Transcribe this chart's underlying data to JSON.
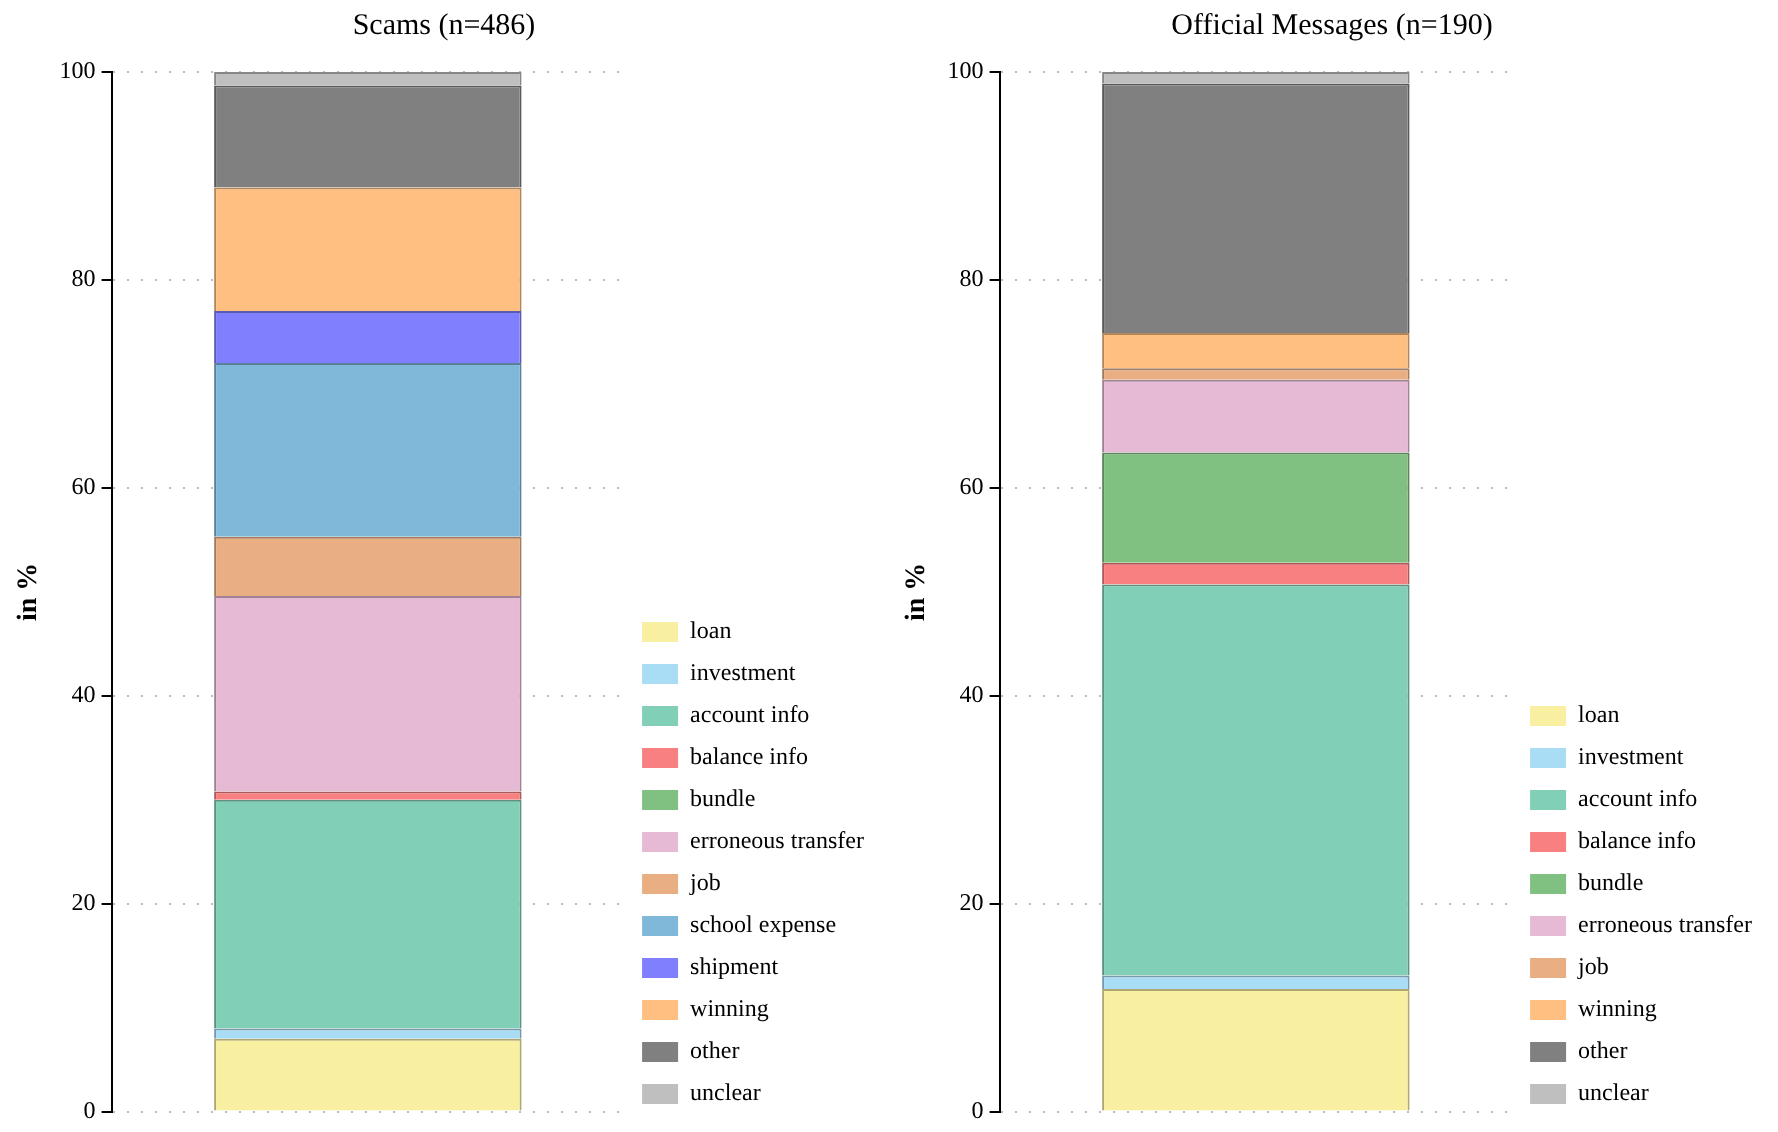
{
  "chart_data": [
    {
      "type": "bar",
      "title": "Scams (n=486)",
      "ylabel": "in %",
      "categories": [
        null
      ],
      "stacked": true,
      "ylim": [
        0,
        100
      ],
      "yticks": [
        0,
        20,
        40,
        60,
        80,
        100
      ],
      "grid": "y",
      "legend": "bottom right",
      "tick_labels": "y",
      "series": [
        {
          "name": "loan",
          "color": "#f8f0a0",
          "values": [
            7
          ]
        },
        {
          "name": "investment",
          "color": "#a9dcf5",
          "values": [
            1
          ]
        },
        {
          "name": "account info",
          "color": "#80cfb6",
          "values": [
            22
          ]
        },
        {
          "name": "balance info",
          "color": "#f98080",
          "values": [
            0.8
          ]
        },
        {
          "name": "bundle",
          "color": "#80c080",
          "values": [
            0
          ]
        },
        {
          "name": "erroneous transfer",
          "color": "#e6bad4",
          "values": [
            18.8
          ]
        },
        {
          "name": "job",
          "color": "#e9af83",
          "values": [
            5.7
          ]
        },
        {
          "name": "school expense",
          "color": "#80b8da",
          "values": [
            16.7
          ]
        },
        {
          "name": "shipment",
          "color": "#8080ff",
          "values": [
            5
          ]
        },
        {
          "name": "winning",
          "color": "#ffbf80",
          "values": [
            11.9
          ]
        },
        {
          "name": "other",
          "color": "#808080",
          "values": [
            9.8
          ]
        },
        {
          "name": "unclear",
          "color": "#bfbfbf",
          "values": [
            1.3
          ]
        }
      ]
    },
    {
      "type": "bar",
      "title": "Official Messages (n=190)",
      "ylabel": "in %",
      "categories": [
        null
      ],
      "stacked": true,
      "ylim": [
        0,
        100
      ],
      "yticks": [
        0,
        20,
        40,
        60,
        80,
        100
      ],
      "grid": "y",
      "legend": "bottom right",
      "tick_labels": "y",
      "series": [
        {
          "name": "loan",
          "color": "#f8f0a0",
          "values": [
            11.8
          ]
        },
        {
          "name": "investment",
          "color": "#a9dcf5",
          "values": [
            1.3
          ]
        },
        {
          "name": "account info",
          "color": "#80cfb6",
          "values": [
            37.6
          ]
        },
        {
          "name": "balance info",
          "color": "#f98080",
          "values": [
            2.1
          ]
        },
        {
          "name": "bundle",
          "color": "#80c080",
          "values": [
            10.6
          ]
        },
        {
          "name": "erroneous transfer",
          "color": "#e6bad4",
          "values": [
            7
          ]
        },
        {
          "name": "job",
          "color": "#e9af83",
          "values": [
            1.1
          ]
        },
        {
          "name": "winning",
          "color": "#ffbf80",
          "values": [
            3.4
          ]
        },
        {
          "name": "other",
          "color": "#808080",
          "values": [
            24
          ]
        },
        {
          "name": "unclear",
          "color": "#bfbfbf",
          "values": [
            1.1
          ]
        }
      ]
    }
  ]
}
